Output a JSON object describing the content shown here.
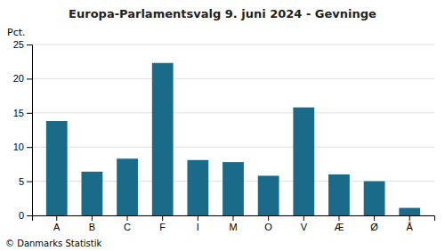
{
  "chart_data": {
    "type": "bar",
    "title": "Europa-Parlamentsvalg 9. juni 2024 - Gevninge",
    "ylabel": "Pct.",
    "categories": [
      "A",
      "B",
      "C",
      "F",
      "I",
      "M",
      "O",
      "V",
      "Æ",
      "Ø",
      "Å"
    ],
    "values": [
      13.8,
      6.4,
      8.3,
      22.3,
      8.1,
      7.8,
      5.8,
      15.8,
      6.0,
      5.0,
      1.1
    ],
    "color": "#1a6b8a",
    "ylim": [
      0,
      25
    ],
    "yticks": [
      0,
      5,
      10,
      15,
      20,
      25
    ],
    "grid": true,
    "footer": "© Danmarks Statistik"
  }
}
